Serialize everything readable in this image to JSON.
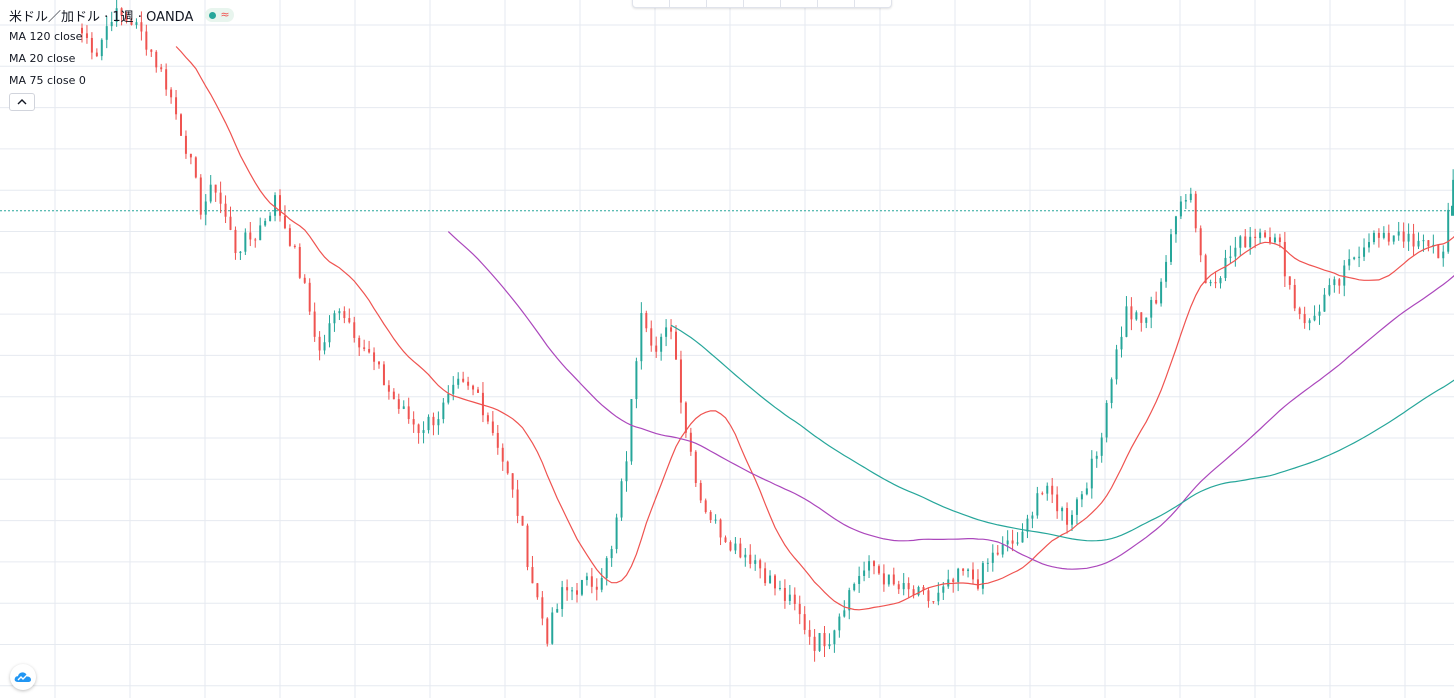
{
  "header": {
    "symbol_title": "米ドル／加ドル · 1週 · OANDA",
    "status_icon": "market-status-dot",
    "wave_icon": "≈"
  },
  "indicators": [
    {
      "label": "MA 120 close",
      "color": "#26a69a"
    },
    {
      "label": "MA 20 close",
      "color": "#ef5350"
    },
    {
      "label": "MA 75 close 0",
      "color": "#ab47bc"
    }
  ],
  "controls": {
    "collapse_icon": "chevron-up-icon",
    "logo_icon": "tradingview-cloud-icon",
    "toolbar_cells": 7
  },
  "chart_data": {
    "type": "candlestick",
    "title": "米ドル／加ドル · 1週 · OANDA",
    "colors": {
      "up": "#26a69a",
      "down": "#ef5350",
      "ma120": "#26a69a",
      "ma20": "#ef5350",
      "ma75": "#ab47bc",
      "grid": "#e6eaf0",
      "last_price_line": "#26a69a"
    },
    "ylim": [
      0.965,
      1.47
    ],
    "grid": true,
    "last_price": 1.3175,
    "price_anchors": [
      {
        "i": 0,
        "p": 1.446
      },
      {
        "i": 3,
        "p": 1.433
      },
      {
        "i": 6,
        "p": 1.46
      },
      {
        "i": 10,
        "p": 1.455
      },
      {
        "i": 13,
        "p": 1.44
      },
      {
        "i": 17,
        "p": 1.41
      },
      {
        "i": 21,
        "p": 1.365
      },
      {
        "i": 24,
        "p": 1.32
      },
      {
        "i": 27,
        "p": 1.335
      },
      {
        "i": 31,
        "p": 1.29
      },
      {
        "i": 35,
        "p": 1.3
      },
      {
        "i": 39,
        "p": 1.325
      },
      {
        "i": 42,
        "p": 1.298
      },
      {
        "i": 45,
        "p": 1.26
      },
      {
        "i": 48,
        "p": 1.215
      },
      {
        "i": 52,
        "p": 1.25
      },
      {
        "i": 56,
        "p": 1.225
      },
      {
        "i": 60,
        "p": 1.2
      },
      {
        "i": 64,
        "p": 1.175
      },
      {
        "i": 68,
        "p": 1.16
      },
      {
        "i": 72,
        "p": 1.17
      },
      {
        "i": 76,
        "p": 1.19
      },
      {
        "i": 80,
        "p": 1.185
      },
      {
        "i": 84,
        "p": 1.15
      },
      {
        "i": 88,
        "p": 1.1
      },
      {
        "i": 91,
        "p": 1.05
      },
      {
        "i": 94,
        "p": 1.01
      },
      {
        "i": 97,
        "p": 1.04
      },
      {
        "i": 100,
        "p": 1.045
      },
      {
        "i": 104,
        "p": 1.05
      },
      {
        "i": 107,
        "p": 1.07
      },
      {
        "i": 110,
        "p": 1.14
      },
      {
        "i": 113,
        "p": 1.25
      },
      {
        "i": 116,
        "p": 1.215
      },
      {
        "i": 119,
        "p": 1.235
      },
      {
        "i": 122,
        "p": 1.16
      },
      {
        "i": 125,
        "p": 1.11
      },
      {
        "i": 128,
        "p": 1.09
      },
      {
        "i": 132,
        "p": 1.075
      },
      {
        "i": 136,
        "p": 1.065
      },
      {
        "i": 140,
        "p": 1.045
      },
      {
        "i": 144,
        "p": 1.03
      },
      {
        "i": 148,
        "p": 1.005
      },
      {
        "i": 151,
        "p": 1.01
      },
      {
        "i": 154,
        "p": 1.035
      },
      {
        "i": 157,
        "p": 1.055
      },
      {
        "i": 160,
        "p": 1.06
      },
      {
        "i": 164,
        "p": 1.045
      },
      {
        "i": 168,
        "p": 1.04
      },
      {
        "i": 172,
        "p": 1.035
      },
      {
        "i": 175,
        "p": 1.045
      },
      {
        "i": 178,
        "p": 1.055
      },
      {
        "i": 181,
        "p": 1.05
      },
      {
        "i": 184,
        "p": 1.068
      },
      {
        "i": 187,
        "p": 1.075
      },
      {
        "i": 190,
        "p": 1.08
      },
      {
        "i": 193,
        "p": 1.115
      },
      {
        "i": 196,
        "p": 1.11
      },
      {
        "i": 199,
        "p": 1.095
      },
      {
        "i": 202,
        "p": 1.115
      },
      {
        "i": 205,
        "p": 1.14
      },
      {
        "i": 208,
        "p": 1.2
      },
      {
        "i": 211,
        "p": 1.245
      },
      {
        "i": 214,
        "p": 1.235
      },
      {
        "i": 217,
        "p": 1.255
      },
      {
        "i": 220,
        "p": 1.295
      },
      {
        "i": 222,
        "p": 1.33
      },
      {
        "i": 224,
        "p": 1.33
      },
      {
        "i": 227,
        "p": 1.265
      },
      {
        "i": 230,
        "p": 1.275
      },
      {
        "i": 233,
        "p": 1.29
      },
      {
        "i": 236,
        "p": 1.3
      },
      {
        "i": 239,
        "p": 1.305
      },
      {
        "i": 242,
        "p": 1.29
      },
      {
        "i": 245,
        "p": 1.25
      },
      {
        "i": 248,
        "p": 1.235
      },
      {
        "i": 251,
        "p": 1.255
      },
      {
        "i": 254,
        "p": 1.265
      },
      {
        "i": 257,
        "p": 1.285
      },
      {
        "i": 260,
        "p": 1.3
      },
      {
        "i": 263,
        "p": 1.295
      },
      {
        "i": 266,
        "p": 1.305
      },
      {
        "i": 269,
        "p": 1.29
      },
      {
        "i": 272,
        "p": 1.295
      },
      {
        "i": 275,
        "p": 1.285
      },
      {
        "i": 278,
        "p": 1.365
      },
      {
        "i": 280,
        "p": 1.335
      },
      {
        "i": 282,
        "p": 1.315
      }
    ]
  }
}
